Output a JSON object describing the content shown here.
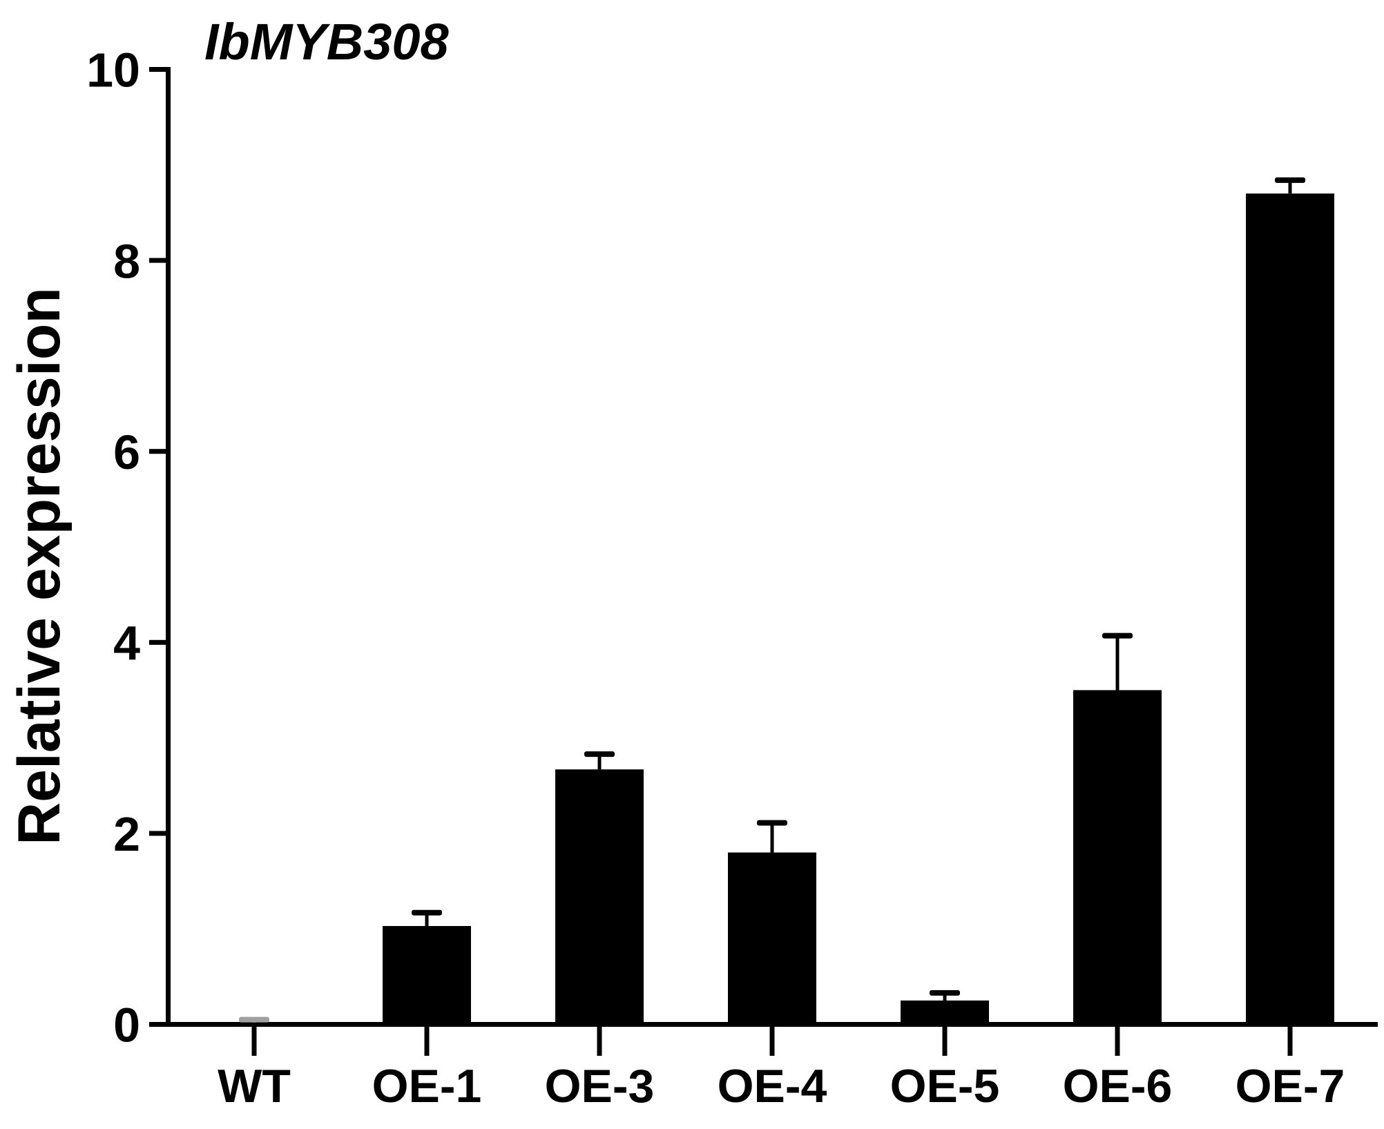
{
  "chart_data": {
    "type": "bar",
    "title": "IbMYB308",
    "ylabel": "Relative expression",
    "xlabel": "",
    "categories": [
      "WT",
      "OE-1",
      "OE-3",
      "OE-4",
      "OE-5",
      "OE-6",
      "OE-7"
    ],
    "values": [
      0.02,
      1.03,
      2.67,
      1.8,
      0.25,
      3.5,
      8.7
    ],
    "errors": [
      0.03,
      0.14,
      0.16,
      0.31,
      0.08,
      0.57,
      0.14
    ],
    "error_bar_colors": [
      "#a0a0a0",
      "#000000",
      "#000000",
      "#000000",
      "#000000",
      "#000000",
      "#000000"
    ],
    "ylim": [
      0,
      10
    ],
    "yticks": [
      0,
      2,
      4,
      6,
      8,
      10
    ],
    "grid": false,
    "legend": "none",
    "bar_color": "#000000",
    "axis_color": "#000000",
    "background_color": "#ffffff"
  }
}
